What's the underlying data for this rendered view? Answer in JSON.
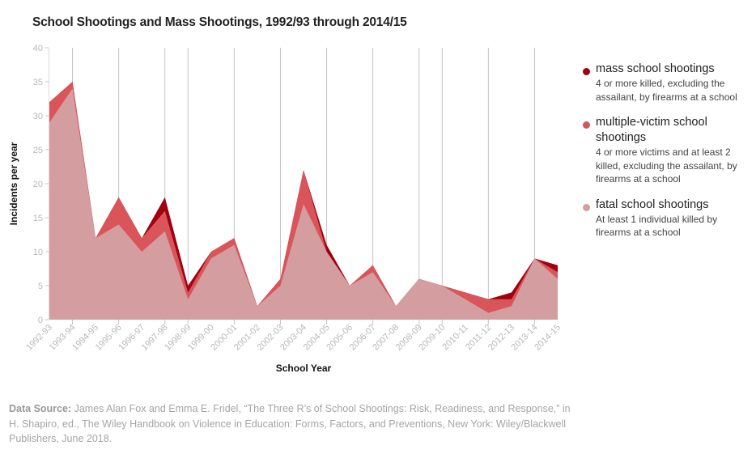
{
  "chart_data": {
    "type": "area",
    "title": "School Shootings and Mass Shootings, 1992/93 through 2014/15",
    "xlabel": "School Year",
    "ylabel": "Incidents per year",
    "ylim": [
      0,
      40
    ],
    "yticks": [
      0,
      5,
      10,
      15,
      20,
      25,
      30,
      35,
      40
    ],
    "grid": "vertical lines at selected years",
    "legend_position": "right",
    "categories": [
      "1992-93",
      "1993-94",
      "1994-95",
      "1995-96",
      "1996-97",
      "1997-98",
      "1998-99",
      "1999-00",
      "2000-01",
      "2001-02",
      "2002-03",
      "2003-04",
      "2004-05",
      "2005-06",
      "2006-07",
      "2007-08",
      "2008-09",
      "2009-10",
      "2010-11",
      "2011-12",
      "2012-13",
      "2013-14",
      "2014-15"
    ],
    "gridline_years": [
      "1993-94",
      "1995-96",
      "1997-98",
      "1998-99",
      "2000-01",
      "2002-03",
      "2004-05",
      "2006-07",
      "2008-09",
      "2009-10",
      "2011-12",
      "2013-14"
    ],
    "series": [
      {
        "name": "fatal school shootings",
        "color": "#d49da0",
        "values": [
          29,
          34,
          12,
          14,
          10,
          13,
          3,
          9,
          11,
          2,
          5,
          17,
          10,
          5,
          7,
          2,
          6,
          5,
          3,
          1,
          2,
          9,
          6
        ]
      },
      {
        "name": "multiple-victim school shootings",
        "color": "#d9555a",
        "values": [
          32,
          35,
          12,
          18,
          12,
          16,
          4,
          10,
          12,
          2,
          6,
          22,
          10,
          5,
          8,
          2,
          6,
          5,
          4,
          3,
          3,
          9,
          7
        ]
      },
      {
        "name": "mass school shootings",
        "color": "#a0000f",
        "values": [
          32,
          35,
          12,
          18,
          12,
          18,
          5,
          10,
          12,
          2,
          6,
          22,
          11,
          5,
          8,
          2,
          6,
          5,
          4,
          3,
          4,
          9,
          8
        ]
      }
    ]
  },
  "legend": [
    {
      "name": "mass school shootings",
      "desc": "4 or more killed, excluding the assailant, by firearms at a school",
      "color": "#a0000f"
    },
    {
      "name": "multiple-victim school shootings",
      "desc": "4 or more victims and at least 2 killed, excluding the assailant, by firearms at a school",
      "color": "#d9555a"
    },
    {
      "name": "fatal school shootings",
      "desc": "At least 1 individual killed by firearms at a school",
      "color": "#d49da0"
    }
  ],
  "source": {
    "label": "Data Source:",
    "text": " James Alan Fox and Emma E. Fridel, “The Three R’s of School Shootings: Risk, Readiness, and Response,” in H. Shapiro, ed., The Wiley Handbook on Violence in Education: Forms, Factors, and Preventions, New York: Wiley/Blackwell Publishers, June 2018."
  }
}
